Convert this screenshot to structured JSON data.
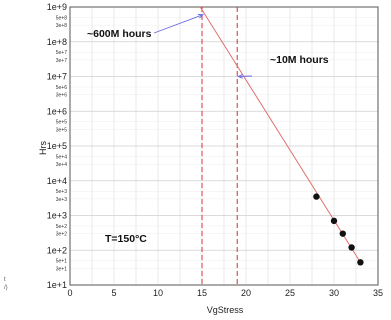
{
  "chart_data": {
    "type": "scatter",
    "xlabel": "VgStress",
    "ylabel": "Hrs",
    "xlim": [
      0,
      35
    ],
    "ylim_log10": [
      1,
      9
    ],
    "log_y": true,
    "grid": true,
    "x_ticks": [
      "0",
      "5",
      "10",
      "15",
      "20",
      "25",
      "30",
      "35"
    ],
    "y_ticks": [
      "1e+1",
      "1e+2",
      "1e+3",
      "1e+4",
      "1e+5",
      "1e+6",
      "1e+7",
      "1e+8",
      "1e+9"
    ],
    "y_minor_labels": [
      "3e+1",
      "5e+1",
      "3e+2",
      "5e+2",
      "3e+3",
      "5e+3",
      "3e+4",
      "5e+4",
      "3e+5",
      "5e+5",
      "3e+6",
      "5e+6",
      "3e+7",
      "5e+7",
      "3e+8",
      "5e+8"
    ],
    "points": [
      {
        "x": 28,
        "y": 3500
      },
      {
        "x": 30,
        "y": 700
      },
      {
        "x": 31,
        "y": 300
      },
      {
        "x": 32,
        "y": 120
      },
      {
        "x": 33,
        "y": 45
      }
    ],
    "fit_line": {
      "x": [
        14.8,
        33
      ],
      "y": [
        1000000000,
        45
      ],
      "color": "#e07070"
    },
    "markers": [
      {
        "x": 15,
        "label": "~600M hours",
        "y": 600000000
      },
      {
        "x": 19,
        "label": "~10M hours",
        "y": 10000000
      }
    ],
    "annotation": "T=150°C",
    "marker_color": "#d43030",
    "point_color": "#111111"
  },
  "edge_text": [
    "t",
    "/)"
  ]
}
